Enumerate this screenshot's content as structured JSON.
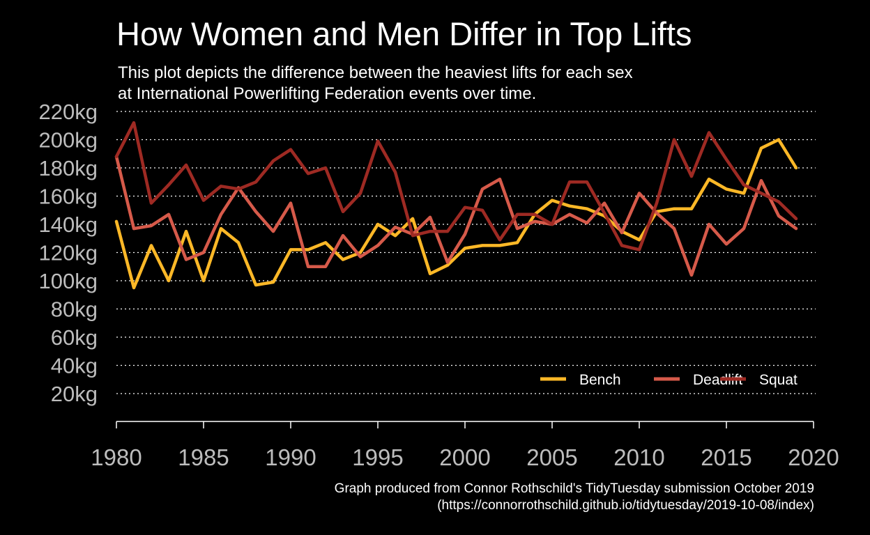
{
  "chart_data": {
    "type": "line",
    "title": "How Women and Men Differ in Top Lifts",
    "subtitle_lines": [
      "This plot depicts the difference between the heaviest lifts for each sex",
      "at International Powerlifting Federation events over time."
    ],
    "caption_lines": [
      "Graph produced from Connor Rothschild's TidyTuesday submission October 2019",
      "(https://connorrothschild.github.io/tidytuesday/2019-10-08/index)"
    ],
    "xlabel": "",
    "ylabel": "",
    "xlim": [
      1980,
      2020
    ],
    "ylim": [
      0,
      220
    ],
    "x_ticks": [
      1980,
      1985,
      1990,
      1995,
      2000,
      2005,
      2010,
      2015,
      2020
    ],
    "y_ticks": [
      20,
      40,
      60,
      80,
      100,
      120,
      140,
      160,
      180,
      200,
      220
    ],
    "y_tick_labels": [
      "20kg",
      "40kg",
      "60kg",
      "80kg",
      "100kg",
      "120kg",
      "140kg",
      "160kg",
      "180kg",
      "200kg",
      "220kg"
    ],
    "grid": "horizontal dotted",
    "legend_position": "bottom-right",
    "x": [
      1980,
      1981,
      1982,
      1983,
      1984,
      1985,
      1986,
      1987,
      1988,
      1989,
      1990,
      1991,
      1992,
      1993,
      1994,
      1995,
      1996,
      1997,
      1998,
      1999,
      2000,
      2001,
      2002,
      2003,
      2004,
      2005,
      2006,
      2007,
      2008,
      2009,
      2010,
      2011,
      2012,
      2013,
      2014,
      2015,
      2016,
      2017,
      2018,
      2019
    ],
    "series": [
      {
        "name": "Bench",
        "color": "#fdb827",
        "values": [
          142,
          95,
          125,
          100,
          135,
          100,
          137,
          127,
          97,
          99,
          122,
          122,
          127,
          115,
          120,
          140,
          132,
          144,
          105,
          111,
          123,
          125,
          125,
          127,
          147,
          157,
          153,
          151,
          146,
          135,
          129,
          149,
          151,
          151,
          172,
          165,
          162,
          194,
          200,
          180
        ]
      },
      {
        "name": "Deadlift",
        "color": "#d65a4a",
        "values": [
          188,
          137,
          139,
          147,
          115,
          120,
          147,
          166,
          149,
          135,
          155,
          110,
          110,
          132,
          117,
          125,
          138,
          133,
          145,
          113,
          133,
          165,
          172,
          137,
          142,
          140,
          147,
          141,
          155,
          134,
          162,
          148,
          137,
          104,
          140,
          126,
          137,
          171,
          146,
          137
        ]
      },
      {
        "name": "Squat",
        "color": "#9e2a23",
        "values": [
          188,
          212,
          155,
          168,
          182,
          157,
          167,
          165,
          170,
          185,
          193,
          176,
          180,
          149,
          162,
          199,
          177,
          132,
          135,
          135,
          152,
          150,
          129,
          147,
          147,
          140,
          170,
          170,
          148,
          125,
          122,
          155,
          200,
          174,
          205,
          186,
          168,
          162,
          156,
          144
        ]
      }
    ]
  }
}
